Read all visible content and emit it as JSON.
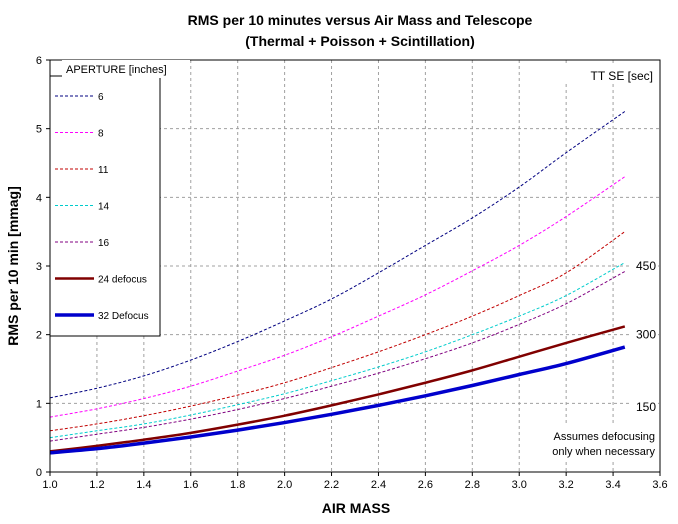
{
  "chart_data": {
    "type": "line",
    "title": "RMS per 10 minutes versus Air Mass and Telescope",
    "subtitle": "(Thermal + Poisson + Scintillation)",
    "xlabel": "AIR MASS",
    "ylabel": "RMS per 10 min [mmag]",
    "xlim": [
      1.0,
      3.6
    ],
    "ylim": [
      0,
      6
    ],
    "x_ticks": [
      "1.0",
      "1.2",
      "1.4",
      "1.6",
      "1.8",
      "2.0",
      "2.2",
      "2.4",
      "2.6",
      "2.8",
      "3.0",
      "3.2",
      "3.4",
      "3.6"
    ],
    "y_ticks": [
      "0",
      "1",
      "2",
      "3",
      "4",
      "5",
      "6"
    ],
    "grid": true,
    "legend": {
      "title": "APERTURE [inches]",
      "placement": "top-left"
    },
    "x": [
      1.0,
      1.2,
      1.4,
      1.6,
      1.8,
      2.0,
      2.2,
      2.4,
      2.6,
      2.8,
      3.0,
      3.2,
      3.45
    ],
    "series": [
      {
        "name": "6",
        "color": "#000080",
        "style": "dashed",
        "values": [
          1.08,
          1.22,
          1.4,
          1.63,
          1.9,
          2.2,
          2.52,
          2.9,
          3.3,
          3.7,
          4.15,
          4.65,
          5.25
        ]
      },
      {
        "name": "8",
        "color": "#ff00ff",
        "style": "dashed",
        "values": [
          0.8,
          0.92,
          1.07,
          1.25,
          1.47,
          1.7,
          1.97,
          2.27,
          2.58,
          2.93,
          3.3,
          3.72,
          4.3
        ]
      },
      {
        "name": "11",
        "color": "#c00000",
        "style": "dashed",
        "values": [
          0.6,
          0.7,
          0.82,
          0.96,
          1.12,
          1.3,
          1.52,
          1.75,
          2.0,
          2.27,
          2.57,
          2.9,
          3.5
        ]
      },
      {
        "name": "14",
        "color": "#00cccc",
        "style": "dashed",
        "values": [
          0.5,
          0.6,
          0.7,
          0.83,
          0.98,
          1.14,
          1.33,
          1.53,
          1.75,
          2.0,
          2.27,
          2.57,
          3.05
        ]
      },
      {
        "name": "16",
        "color": "#800080",
        "style": "dashed",
        "values": [
          0.45,
          0.55,
          0.65,
          0.77,
          0.91,
          1.07,
          1.25,
          1.44,
          1.65,
          1.88,
          2.15,
          2.45,
          2.92
        ]
      },
      {
        "name": "24 defocus",
        "color": "#800000",
        "style": "solid",
        "width": 2.5,
        "values": [
          0.3,
          0.38,
          0.47,
          0.57,
          0.69,
          0.82,
          0.97,
          1.13,
          1.3,
          1.48,
          1.68,
          1.88,
          2.12
        ]
      },
      {
        "name": "32 Defocus",
        "color": "#0000cc",
        "style": "solid",
        "width": 3.5,
        "values": [
          0.28,
          0.34,
          0.42,
          0.51,
          0.61,
          0.72,
          0.84,
          0.97,
          1.11,
          1.26,
          1.42,
          1.58,
          1.82
        ]
      }
    ],
    "annotations": {
      "tt_se_label": "TT SE [sec]",
      "tt_se_values": [
        {
          "text": "450",
          "y": 3.0
        },
        {
          "text": "300",
          "y": 2.0
        },
        {
          "text": "150",
          "y": 0.95
        }
      ],
      "note_line1": "Assumes  defocusing",
      "note_line2": "only when necessary"
    }
  }
}
